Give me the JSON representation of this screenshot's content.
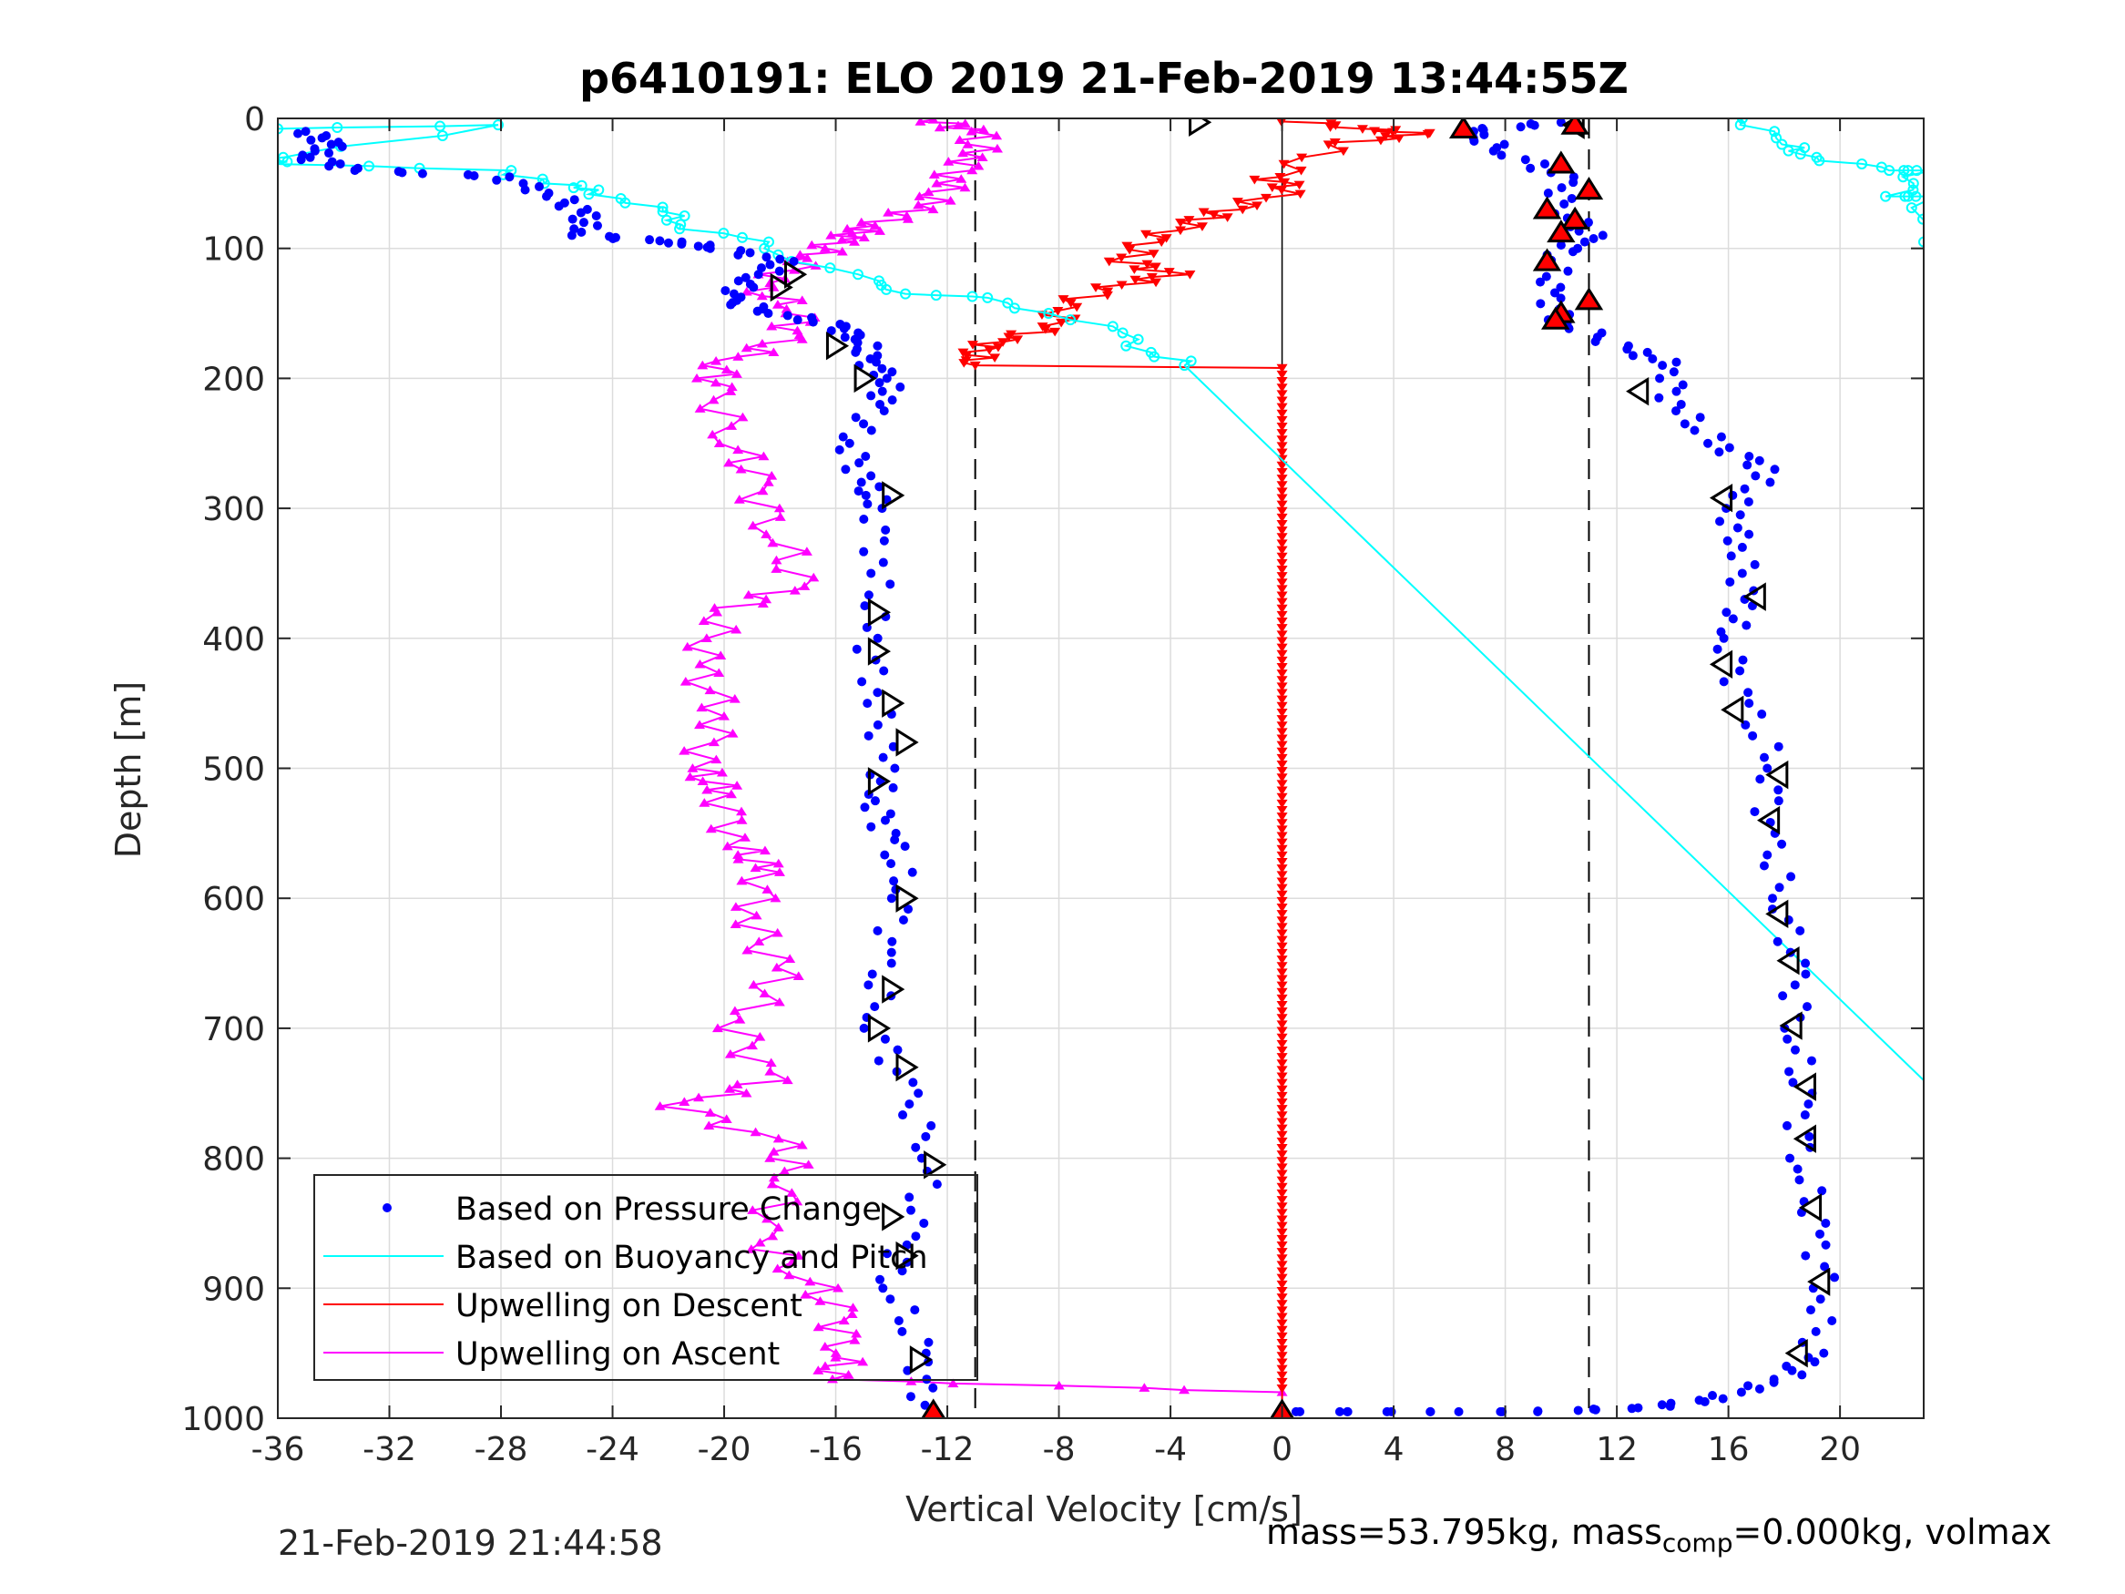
{
  "chart_data": {
    "type": "scatter",
    "title": "p6410191: ELO 2019 21-Feb-2019 13:44:55Z",
    "xlabel": "Vertical Velocity [cm/s]",
    "ylabel": "Depth [m]",
    "xlim": [
      -36,
      23
    ],
    "ylim": [
      0,
      1000
    ],
    "y_reversed": true,
    "grid": true,
    "legend_placement": "bottom-left",
    "x_ticks": [
      "-36",
      "-32",
      "-28",
      "-24",
      "-20",
      "-16",
      "-12",
      "-8",
      "-4",
      "0",
      "4",
      "8",
      "12",
      "16",
      "20"
    ],
    "y_ticks": [
      "0",
      "100",
      "200",
      "300",
      "400",
      "500",
      "600",
      "700",
      "800",
      "900",
      "1000"
    ],
    "reference_lines": {
      "vertical_dashed_x": [
        -11,
        11
      ],
      "vertical_solid_x": 0
    },
    "legend": [
      "Based on Pressure Change",
      "Based on Buoyancy and Pitch",
      "Upwelling on Descent",
      "Upwelling on Ascent"
    ],
    "series": [
      {
        "name": "Based on Pressure Change",
        "color": "#0000ff",
        "marker": "dot",
        "descent": [
          [
            -35,
            10
          ],
          [
            -34,
            20
          ],
          [
            -35,
            30
          ],
          [
            -33,
            40
          ],
          [
            -28,
            45
          ],
          [
            -26,
            60
          ],
          [
            -25,
            75
          ],
          [
            -25,
            90
          ],
          [
            -22,
            95
          ],
          [
            -20,
            100
          ],
          [
            -18,
            110
          ],
          [
            -19,
            125
          ],
          [
            -20,
            140
          ],
          [
            -18,
            150
          ],
          [
            -16,
            160
          ],
          [
            -15,
            170
          ],
          [
            -15,
            185
          ],
          [
            -14,
            200
          ],
          [
            -14.5,
            220
          ],
          [
            -15.5,
            250
          ],
          [
            -15,
            280
          ],
          [
            -14.5,
            300
          ],
          [
            -14.5,
            350
          ],
          [
            -14.8,
            400
          ],
          [
            -14.5,
            450
          ],
          [
            -14.3,
            500
          ],
          [
            -14.5,
            530
          ],
          [
            -14,
            560
          ],
          [
            -13.5,
            600
          ],
          [
            -14.5,
            650
          ],
          [
            -14.5,
            700
          ],
          [
            -13.5,
            750
          ],
          [
            -12.5,
            800
          ],
          [
            -13.5,
            860
          ],
          [
            -14,
            900
          ],
          [
            -13,
            950
          ],
          [
            -12.8,
            990
          ]
        ],
        "ascent": [
          [
            0.5,
            995
          ],
          [
            4,
            995
          ],
          [
            9,
            995
          ],
          [
            13,
            992
          ],
          [
            15.5,
            985
          ],
          [
            18,
            970
          ],
          [
            19,
            950
          ],
          [
            19.5,
            900
          ],
          [
            19,
            850
          ],
          [
            18.7,
            800
          ],
          [
            18.5,
            750
          ],
          [
            18.5,
            700
          ],
          [
            18.3,
            650
          ],
          [
            18,
            600
          ],
          [
            17.3,
            550
          ],
          [
            17.7,
            500
          ],
          [
            16.5,
            450
          ],
          [
            16,
            400
          ],
          [
            16.5,
            370
          ],
          [
            16.5,
            330
          ],
          [
            16,
            300
          ],
          [
            17.5,
            270
          ],
          [
            15.5,
            250
          ],
          [
            14,
            220
          ],
          [
            14,
            190
          ],
          [
            12,
            175
          ],
          [
            10,
            155
          ],
          [
            9.5,
            130
          ],
          [
            10,
            105
          ],
          [
            11,
            90
          ],
          [
            10,
            70
          ],
          [
            10,
            45
          ],
          [
            8,
            25
          ],
          [
            6.5,
            10
          ],
          [
            10,
            3
          ]
        ]
      },
      {
        "name": "Based on Buoyancy and Pitch",
        "color": "#00ffff",
        "marker": "open-circle",
        "descent": [
          [
            -36,
            8
          ],
          [
            -28,
            5
          ],
          [
            -36,
            30
          ],
          [
            -36,
            35
          ],
          [
            -28,
            40
          ],
          [
            -26,
            50
          ],
          [
            -25,
            55
          ],
          [
            -23,
            65
          ],
          [
            -22,
            75
          ],
          [
            -21,
            85
          ],
          [
            -19,
            95
          ],
          [
            -17,
            110
          ],
          [
            -15,
            125
          ],
          [
            -13,
            135
          ],
          [
            -11,
            138
          ],
          [
            -8,
            150
          ],
          [
            -6,
            165
          ],
          [
            -4.5,
            180
          ],
          [
            -3.5,
            190
          ]
        ],
        "ascent": [
          [
            -3.5,
            190
          ],
          [
            23,
            740
          ]
        ],
        "surface": [
          [
            16.5,
            0
          ],
          [
            18,
            20
          ],
          [
            19,
            30
          ],
          [
            22,
            40
          ],
          [
            23,
            40
          ],
          [
            22,
            60
          ],
          [
            23,
            60
          ],
          [
            23,
            95
          ]
        ]
      },
      {
        "name": "Upwelling on Descent",
        "color": "#ff0000",
        "marker": "triangle-down",
        "values": [
          [
            0,
            1
          ],
          [
            3,
            8
          ],
          [
            5,
            12
          ],
          [
            2,
            20
          ],
          [
            -0.5,
            45
          ],
          [
            0.5,
            55
          ],
          [
            -2,
            70
          ],
          [
            -3,
            80
          ],
          [
            -5,
            95
          ],
          [
            -5.5,
            110
          ],
          [
            -4,
            120
          ],
          [
            -6,
            130
          ],
          [
            -8,
            145
          ],
          [
            -8,
            160
          ],
          [
            -10,
            170
          ],
          [
            -11,
            180
          ],
          [
            -11,
            190
          ],
          [
            0,
            192
          ],
          [
            0,
            995
          ]
        ]
      },
      {
        "name": "Upwelling on Ascent",
        "color": "#ff00ff",
        "marker": "triangle-up",
        "values": [
          [
            -12.5,
            1
          ],
          [
            -11,
            10
          ],
          [
            -11,
            30
          ],
          [
            -12,
            50
          ],
          [
            -13,
            70
          ],
          [
            -15,
            85
          ],
          [
            -16,
            95
          ],
          [
            -17,
            110
          ],
          [
            -19,
            130
          ],
          [
            -17,
            150
          ],
          [
            -18,
            170
          ],
          [
            -20,
            190
          ],
          [
            -20.5,
            210
          ],
          [
            -19.5,
            250
          ],
          [
            -19,
            280
          ],
          [
            -18,
            320
          ],
          [
            -17.5,
            360
          ],
          [
            -20,
            380
          ],
          [
            -21,
            420
          ],
          [
            -20,
            460
          ],
          [
            -21,
            500
          ],
          [
            -20,
            520
          ],
          [
            -19.5,
            560
          ],
          [
            -18.5,
            580
          ],
          [
            -19,
            620
          ],
          [
            -18,
            660
          ],
          [
            -19.5,
            700
          ],
          [
            -18.5,
            740
          ],
          [
            -21.5,
            760
          ],
          [
            -18,
            790
          ],
          [
            -17.5,
            820
          ],
          [
            -19,
            860
          ],
          [
            -17,
            890
          ],
          [
            -16,
            920
          ],
          [
            -15.5,
            950
          ],
          [
            -16.5,
            970
          ],
          [
            0,
            980
          ]
        ]
      }
    ],
    "dive_markers": {
      "color": "#000000",
      "descent_triangles_x_y": [
        [
          -3,
          3
        ],
        [
          -17.5,
          120
        ],
        [
          -18,
          130
        ],
        [
          -16,
          175
        ],
        [
          -15,
          200
        ],
        [
          -14,
          290
        ],
        [
          -14.5,
          380
        ],
        [
          -14.5,
          410
        ],
        [
          -14,
          450
        ],
        [
          -13.5,
          480
        ],
        [
          -14.5,
          510
        ],
        [
          -13.5,
          600
        ],
        [
          -14,
          670
        ],
        [
          -14.5,
          700
        ],
        [
          -13.5,
          730
        ],
        [
          -12.5,
          805
        ],
        [
          -14,
          845
        ],
        [
          -13.5,
          875
        ],
        [
          -13,
          955
        ]
      ],
      "ascent_triangles_x_y": [
        [
          10.5,
          5
        ],
        [
          12.8,
          210
        ],
        [
          15.8,
          292
        ],
        [
          17,
          368
        ],
        [
          15.8,
          420
        ],
        [
          16.2,
          455
        ],
        [
          17.8,
          505
        ],
        [
          17.5,
          540
        ],
        [
          17.8,
          612
        ],
        [
          18.2,
          648
        ],
        [
          18.3,
          698
        ],
        [
          18.8,
          745
        ],
        [
          18.8,
          785
        ],
        [
          19,
          838
        ],
        [
          19.3,
          895
        ],
        [
          18.5,
          950
        ]
      ],
      "red_filled_triangles_x_y": [
        [
          6.5,
          8
        ],
        [
          10.5,
          5
        ],
        [
          10,
          35
        ],
        [
          11,
          55
        ],
        [
          9.5,
          70
        ],
        [
          10.5,
          78
        ],
        [
          10,
          88
        ],
        [
          9.5,
          110
        ],
        [
          11,
          140
        ],
        [
          10,
          150
        ],
        [
          9.8,
          155
        ],
        [
          -12.5,
          995
        ],
        [
          0,
          995
        ]
      ]
    }
  },
  "footer": {
    "timestamp": "21-Feb-2019 21:44:58",
    "mass_text": "mass=53.795kg, mass",
    "mass_sub": "comp",
    "mass_rest": "=0.000kg, volmax"
  }
}
